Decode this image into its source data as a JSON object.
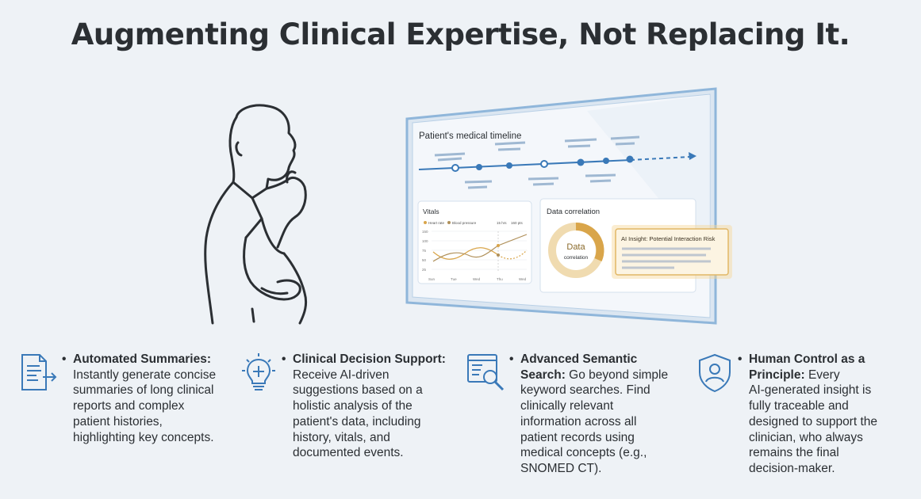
{
  "title": "Augmenting Clinical Expertise, Not Replacing It.",
  "screen": {
    "timeline_title": "Patient's medical timeline",
    "vitals": {
      "title": "Vitals",
      "legend": [
        "Heart rate",
        "Blood pressure"
      ],
      "legend_right": [
        "15 hrs",
        "160 pts"
      ],
      "x_ticks": [
        "Sun",
        "Tue",
        "Wed",
        "Thu",
        "Wed"
      ],
      "y_ticks": [
        "150",
        "100",
        "75",
        "50",
        "25"
      ]
    },
    "correlation": {
      "title": "Data correlation",
      "donut_line1": "Data",
      "donut_line2": "correlation",
      "insight_label": "AI Insight: Potential Interaction Risk"
    }
  },
  "features": [
    {
      "icon": "document-arrow-icon",
      "heading": "Automated Summaries:",
      "lines": [
        "Instantly generate concise",
        "summaries of long clinical",
        "reports and complex",
        "patient histories,",
        "highlighting key concepts."
      ]
    },
    {
      "icon": "lightbulb-plus-icon",
      "heading": "Clinical Decision Support:",
      "lines": [
        "Receive AI-driven",
        "suggestions based on a",
        "holistic analysis of the",
        "patient's data, including",
        "history, vitals, and",
        "documented events."
      ]
    },
    {
      "icon": "search-document-icon",
      "heading": "Advanced Semantic",
      "lines": [
        "Search: Go beyond simple",
        "keyword searches. Find",
        "clinically relevant",
        "information across all",
        "patient records using",
        "medical concepts (e.g.,",
        "SNOMED CT)."
      ]
    },
    {
      "icon": "shield-user-icon",
      "heading": "Human Control as a",
      "lines": [
        "Principle: Every",
        "AI-generated insight is",
        "fully traceable and",
        "designed to support the",
        "clinician, who always",
        "remains the final",
        "decision-maker."
      ]
    }
  ],
  "colors": {
    "accent_blue": "#3a79b8",
    "accent_gold": "#d9a54a",
    "background": "#eef2f6"
  }
}
